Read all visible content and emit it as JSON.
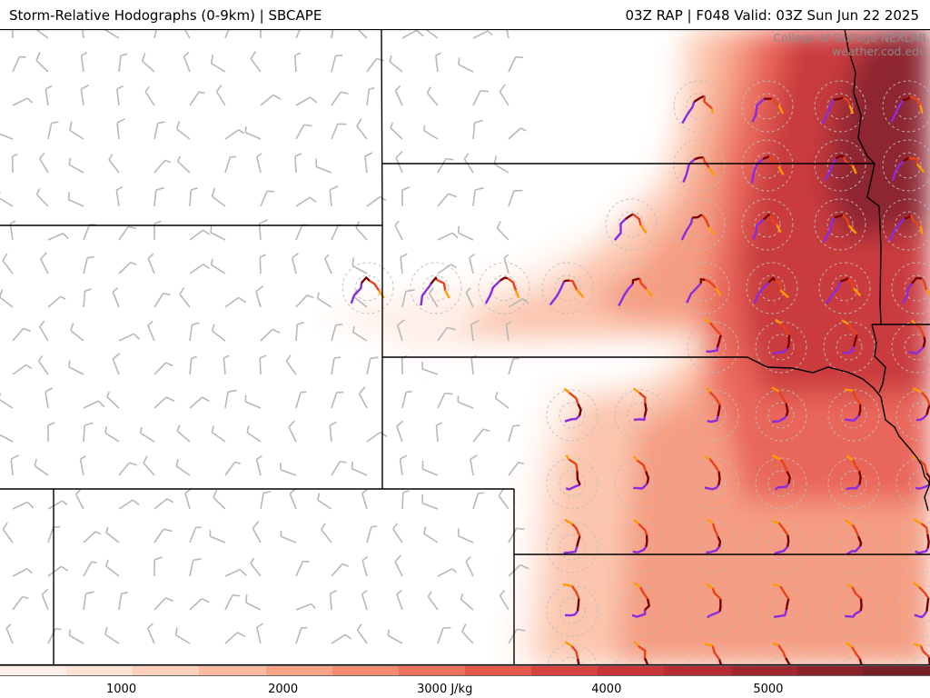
{
  "header": {
    "left_title": "Storm-Relative Hodographs (0-9km) | SBCAPE",
    "right_title": "03Z RAP | F048 Valid: 03Z Sun Jun 22 2025"
  },
  "credit": {
    "line1": "College of DuPage NEXLAB",
    "line2": "weather.cod.edu"
  },
  "colorbar": {
    "min": 250,
    "max": 6000,
    "ticks": [
      {
        "value": 1000,
        "label": "1000"
      },
      {
        "value": 2000,
        "label": "2000"
      },
      {
        "value": 3000,
        "label": "3000 J/kg"
      },
      {
        "value": 4000,
        "label": "4000"
      },
      {
        "value": 5000,
        "label": "5000"
      }
    ],
    "colors": [
      "#fef0e8",
      "#fde2d4",
      "#fcd0bc",
      "#fbbba2",
      "#f8a487",
      "#f48c70",
      "#ee725c",
      "#e4584b",
      "#d7443f",
      "#c83538",
      "#b62b34",
      "#a02630",
      "#8b222b",
      "#772028"
    ]
  },
  "hodograph_colors": [
    "#8a2be2",
    "#7a0000",
    "#e8421a",
    "#ff9a00"
  ],
  "barb_color": "#b8b8b8",
  "border_color": "#000000"
}
